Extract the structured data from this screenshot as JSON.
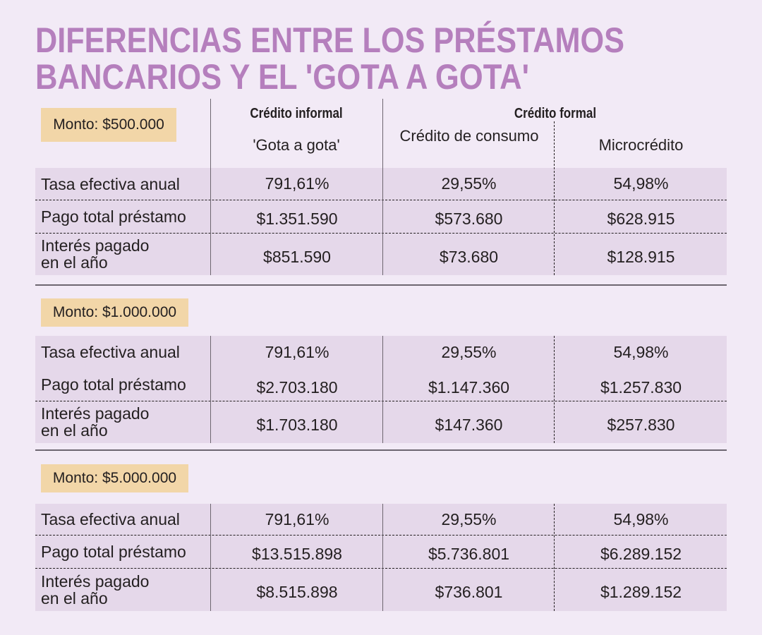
{
  "title": {
    "line1": "DIFERENCIAS ENTRE LOS PRÉSTAMOS",
    "line2": "BANCARIOS Y EL 'GOTA A GOTA'",
    "color": "#b57fbd"
  },
  "header": {
    "group_informal": "Crédito informal",
    "group_formal": "Crédito formal",
    "columns": [
      "'Gota a gota'",
      "Crédito de consumo",
      "Microcrédito"
    ]
  },
  "row_labels": [
    "Tasa efectiva anual",
    "Pago total préstamo",
    "Interés pagado en el año"
  ],
  "sections": [
    {
      "monto": "Monto: $500.000",
      "rows": [
        [
          "791,61%",
          "29,55%",
          "54,98%"
        ],
        [
          "$1.351.590",
          "$573.680",
          "$628.915"
        ],
        [
          "$851.590",
          "$73.680",
          "$128.915"
        ]
      ]
    },
    {
      "monto": "Monto: $1.000.000",
      "rows": [
        [
          "791,61%",
          "29,55%",
          "54,98%"
        ],
        [
          "$2.703.180",
          "$1.147.360",
          "$1.257.830"
        ],
        [
          "$1.703.180",
          "$147.360",
          "$257.830"
        ]
      ]
    },
    {
      "monto": "Monto: $5.000.000",
      "rows": [
        [
          "791,61%",
          "29,55%",
          "54,98%"
        ],
        [
          "$13.515.898",
          "$5.736.801",
          "$6.289.152"
        ],
        [
          "$8.515.898",
          "$736.801",
          "$1.289.152"
        ]
      ]
    }
  ],
  "chart_data": {
    "type": "table",
    "title": "DIFERENCIAS ENTRE LOS PRÉSTAMOS BANCARIOS Y EL 'GOTA A GOTA'",
    "columns": [
      "'Gota a gota'",
      "Crédito de consumo",
      "Microcrédito"
    ],
    "column_groups": [
      {
        "name": "Crédito informal",
        "columns": [
          "'Gota a gota'"
        ]
      },
      {
        "name": "Crédito formal",
        "columns": [
          "Crédito de consumo",
          "Microcrédito"
        ]
      }
    ],
    "row_labels": [
      "Tasa efectiva anual",
      "Pago total préstamo",
      "Interés pagado en el año"
    ],
    "sections": [
      {
        "monto": "$500.000",
        "values": [
          [
            791.61,
            29.55,
            54.98
          ],
          [
            1351590,
            573680,
            628915
          ],
          [
            851590,
            73680,
            128915
          ]
        ]
      },
      {
        "monto": "$1.000.000",
        "values": [
          [
            791.61,
            29.55,
            54.98
          ],
          [
            2703180,
            1147360,
            1257830
          ],
          [
            1703180,
            147360,
            257830
          ]
        ]
      },
      {
        "monto": "$5.000.000",
        "values": [
          [
            791.61,
            29.55,
            54.98
          ],
          [
            13515898,
            5736801,
            6289152
          ],
          [
            8515898,
            736801,
            1289152
          ]
        ]
      }
    ]
  },
  "colors": {
    "background": "#f2eaf6",
    "row_band": "#e5d8ea",
    "monto_box": "#f2d6a8",
    "title": "#b57fbd"
  }
}
